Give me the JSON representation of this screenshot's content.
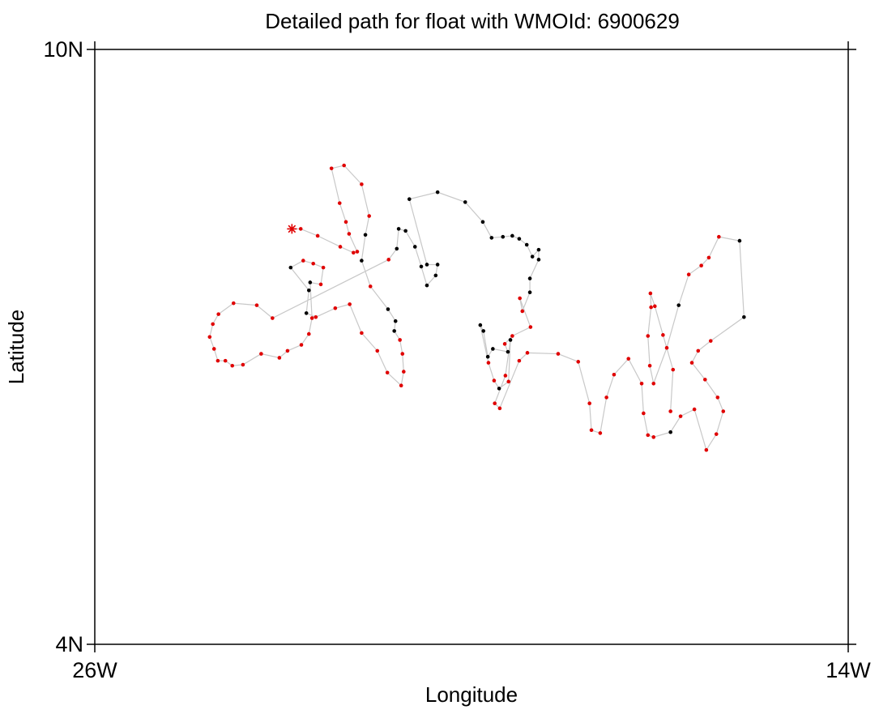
{
  "chart_data": {
    "type": "line",
    "title": "Detailed path for float with WMOId: 6900629",
    "xlabel": "Longitude",
    "ylabel": "Latitude",
    "x": [
      -22.86,
      -22.72,
      -22.45,
      -22.09,
      -21.88,
      -21.82,
      -21.95,
      -22.0,
      -22.1,
      -22.23,
      -22.03,
      -21.75,
      -21.63,
      -21.69,
      -21.75,
      -21.61,
      -21.33,
      -21.21,
      -21.23,
      -21.14,
      -21.1,
      -21.08,
      -21.12,
      -21.34,
      -21.5,
      -21.75,
      -21.94,
      -22.17,
      -22.48,
      -22.63,
      -22.59,
      -22.88,
      -22.68,
      -22.52,
      -22.36,
      -22.4,
      -22.57,
      -22.54,
      -22.59,
      -22.71,
      -22.93,
      -23.06,
      -23.35,
      -23.64,
      -23.81,
      -23.92,
      -24.04,
      -24.1,
      -24.17,
      -24.12,
      -24.03,
      -23.79,
      -23.42,
      -23.17,
      -21.32,
      -21.19,
      -21.16,
      -21.05,
      -20.9,
      -20.8,
      -20.71,
      -20.57,
      -20.54,
      -20.71,
      -20.99,
      -20.54,
      -20.1,
      -19.82,
      -19.68,
      -19.5,
      -19.35,
      -19.24,
      -19.12,
      -19.03,
      -18.93,
      -18.93,
      -19.07,
      -19.07,
      -19.19,
      -19.23,
      -19.06,
      -19.35,
      -19.47,
      -19.42,
      -19.66,
      -19.74,
      -19.81,
      -19.86,
      -19.73,
      -19.64,
      -19.56,
      -19.41,
      -19.38,
      -19.46,
      -19.63,
      -19.55,
      -19.24,
      -19.11,
      -18.62,
      -18.3,
      -18.12,
      -18.09,
      -17.95,
      -17.85,
      -17.73,
      -17.5,
      -17.29,
      -17.26,
      -17.19,
      -17.1,
      -16.83,
      -16.67,
      -16.45,
      -16.26,
      -16.1,
      -15.99,
      -16.08,
      -16.28,
      -16.49,
      -16.39,
      -16.19,
      -15.66,
      -15.73,
      -16.06,
      -16.22,
      -16.34,
      -16.54,
      -16.7,
      -16.89,
      -17.1,
      -17.16,
      -17.19,
      -17.14,
      -17.15,
      -17.08,
      -16.95,
      -16.79,
      -16.83
    ],
    "y": [
      8.19,
      8.19,
      8.12,
      8.01,
      7.95,
      7.96,
      8.14,
      8.26,
      8.45,
      8.8,
      8.83,
      8.64,
      8.32,
      8.13,
      7.87,
      7.61,
      7.38,
      7.26,
      7.16,
      7.07,
      6.93,
      6.75,
      6.61,
      6.74,
      6.96,
      7.14,
      7.43,
      7.39,
      7.3,
      7.34,
      7.57,
      7.8,
      7.87,
      7.84,
      7.8,
      7.63,
      7.65,
      7.29,
      7.13,
      7.02,
      6.96,
      6.89,
      6.93,
      6.82,
      6.81,
      6.86,
      6.86,
      6.98,
      7.1,
      7.23,
      7.33,
      7.44,
      7.42,
      7.29,
      7.88,
      7.99,
      8.19,
      8.17,
      8.01,
      7.81,
      7.62,
      7.72,
      7.83,
      7.83,
      8.49,
      8.56,
      8.46,
      8.26,
      8.1,
      8.11,
      8.12,
      8.09,
      8.03,
      7.91,
      7.98,
      7.88,
      7.69,
      7.55,
      7.36,
      7.49,
      7.2,
      7.11,
      7.03,
      6.95,
      6.98,
      6.9,
      7.16,
      7.22,
      6.84,
      6.66,
      6.58,
      6.65,
      7.07,
      6.71,
      6.43,
      6.38,
      6.86,
      6.94,
      6.93,
      6.85,
      6.43,
      6.16,
      6.13,
      6.49,
      6.72,
      6.88,
      6.63,
      6.33,
      6.11,
      6.09,
      6.14,
      6.3,
      6.37,
      5.96,
      6.12,
      6.35,
      6.49,
      6.67,
      6.84,
      6.96,
      7.06,
      7.3,
      8.07,
      8.11,
      7.9,
      7.82,
      7.73,
      7.42,
      6.99,
      6.63,
      6.81,
      7.11,
      7.4,
      7.54,
      7.41,
      7.12,
      6.77,
      6.35
    ],
    "point_colors": [
      "#e00000",
      "#e00000",
      "#e00000",
      "#e00000",
      "#e00000",
      "#e00000",
      "#e00000",
      "#e00000",
      "#e00000",
      "#e00000",
      "#e00000",
      "#e00000",
      "#e00000",
      "#000000",
      "#000000",
      "#e00000",
      "#000000",
      "#000000",
      "#000000",
      "#e00000",
      "#e00000",
      "#e00000",
      "#e00000",
      "#e00000",
      "#e00000",
      "#e00000",
      "#e00000",
      "#e00000",
      "#e00000",
      "#000000",
      "#000000",
      "#000000",
      "#e00000",
      "#e00000",
      "#e00000",
      "#e00000",
      "#000000",
      "#e00000",
      "#e00000",
      "#e00000",
      "#e00000",
      "#e00000",
      "#e00000",
      "#e00000",
      "#e00000",
      "#e00000",
      "#e00000",
      "#e00000",
      "#e00000",
      "#e00000",
      "#e00000",
      "#e00000",
      "#e00000",
      "#e00000",
      "#e00000",
      "#000000",
      "#000000",
      "#000000",
      "#000000",
      "#000000",
      "#000000",
      "#000000",
      "#000000",
      "#000000",
      "#000000",
      "#000000",
      "#000000",
      "#000000",
      "#000000",
      "#000000",
      "#000000",
      "#000000",
      "#000000",
      "#000000",
      "#000000",
      "#000000",
      "#000000",
      "#000000",
      "#e00000",
      "#e00000",
      "#e00000",
      "#e00000",
      "#e00000",
      "#000000",
      "#000000",
      "#000000",
      "#000000",
      "#000000",
      "#e00000",
      "#e00000",
      "#000000",
      "#e00000",
      "#000000",
      "#e00000",
      "#e00000",
      "#e00000",
      "#e00000",
      "#e00000",
      "#e00000",
      "#e00000",
      "#e00000",
      "#e00000",
      "#e00000",
      "#e00000",
      "#e00000",
      "#e00000",
      "#e00000",
      "#e00000",
      "#e00000",
      "#e00000",
      "#000000",
      "#e00000",
      "#e00000",
      "#e00000",
      "#e00000",
      "#e00000",
      "#e00000",
      "#e00000",
      "#e00000",
      "#e00000",
      "#e00000",
      "#000000",
      "#000000",
      "#e00000",
      "#e00000",
      "#e00000",
      "#e00000",
      "#000000",
      "#e00000",
      "#e00000",
      "#e00000",
      "#e00000",
      "#e00000",
      "#e00000",
      "#e00000",
      "#e00000",
      "#e00000",
      "#e00000"
    ],
    "line_color": "#c8c8c8",
    "xlim": [
      -26,
      -14
    ],
    "ylim": [
      4,
      10
    ],
    "xticks": [
      {
        "value": -26,
        "label": "26W"
      },
      {
        "value": -14,
        "label": "14W"
      }
    ],
    "yticks": [
      {
        "value": 4,
        "label": "4N"
      },
      {
        "value": 10,
        "label": "10N"
      }
    ]
  }
}
